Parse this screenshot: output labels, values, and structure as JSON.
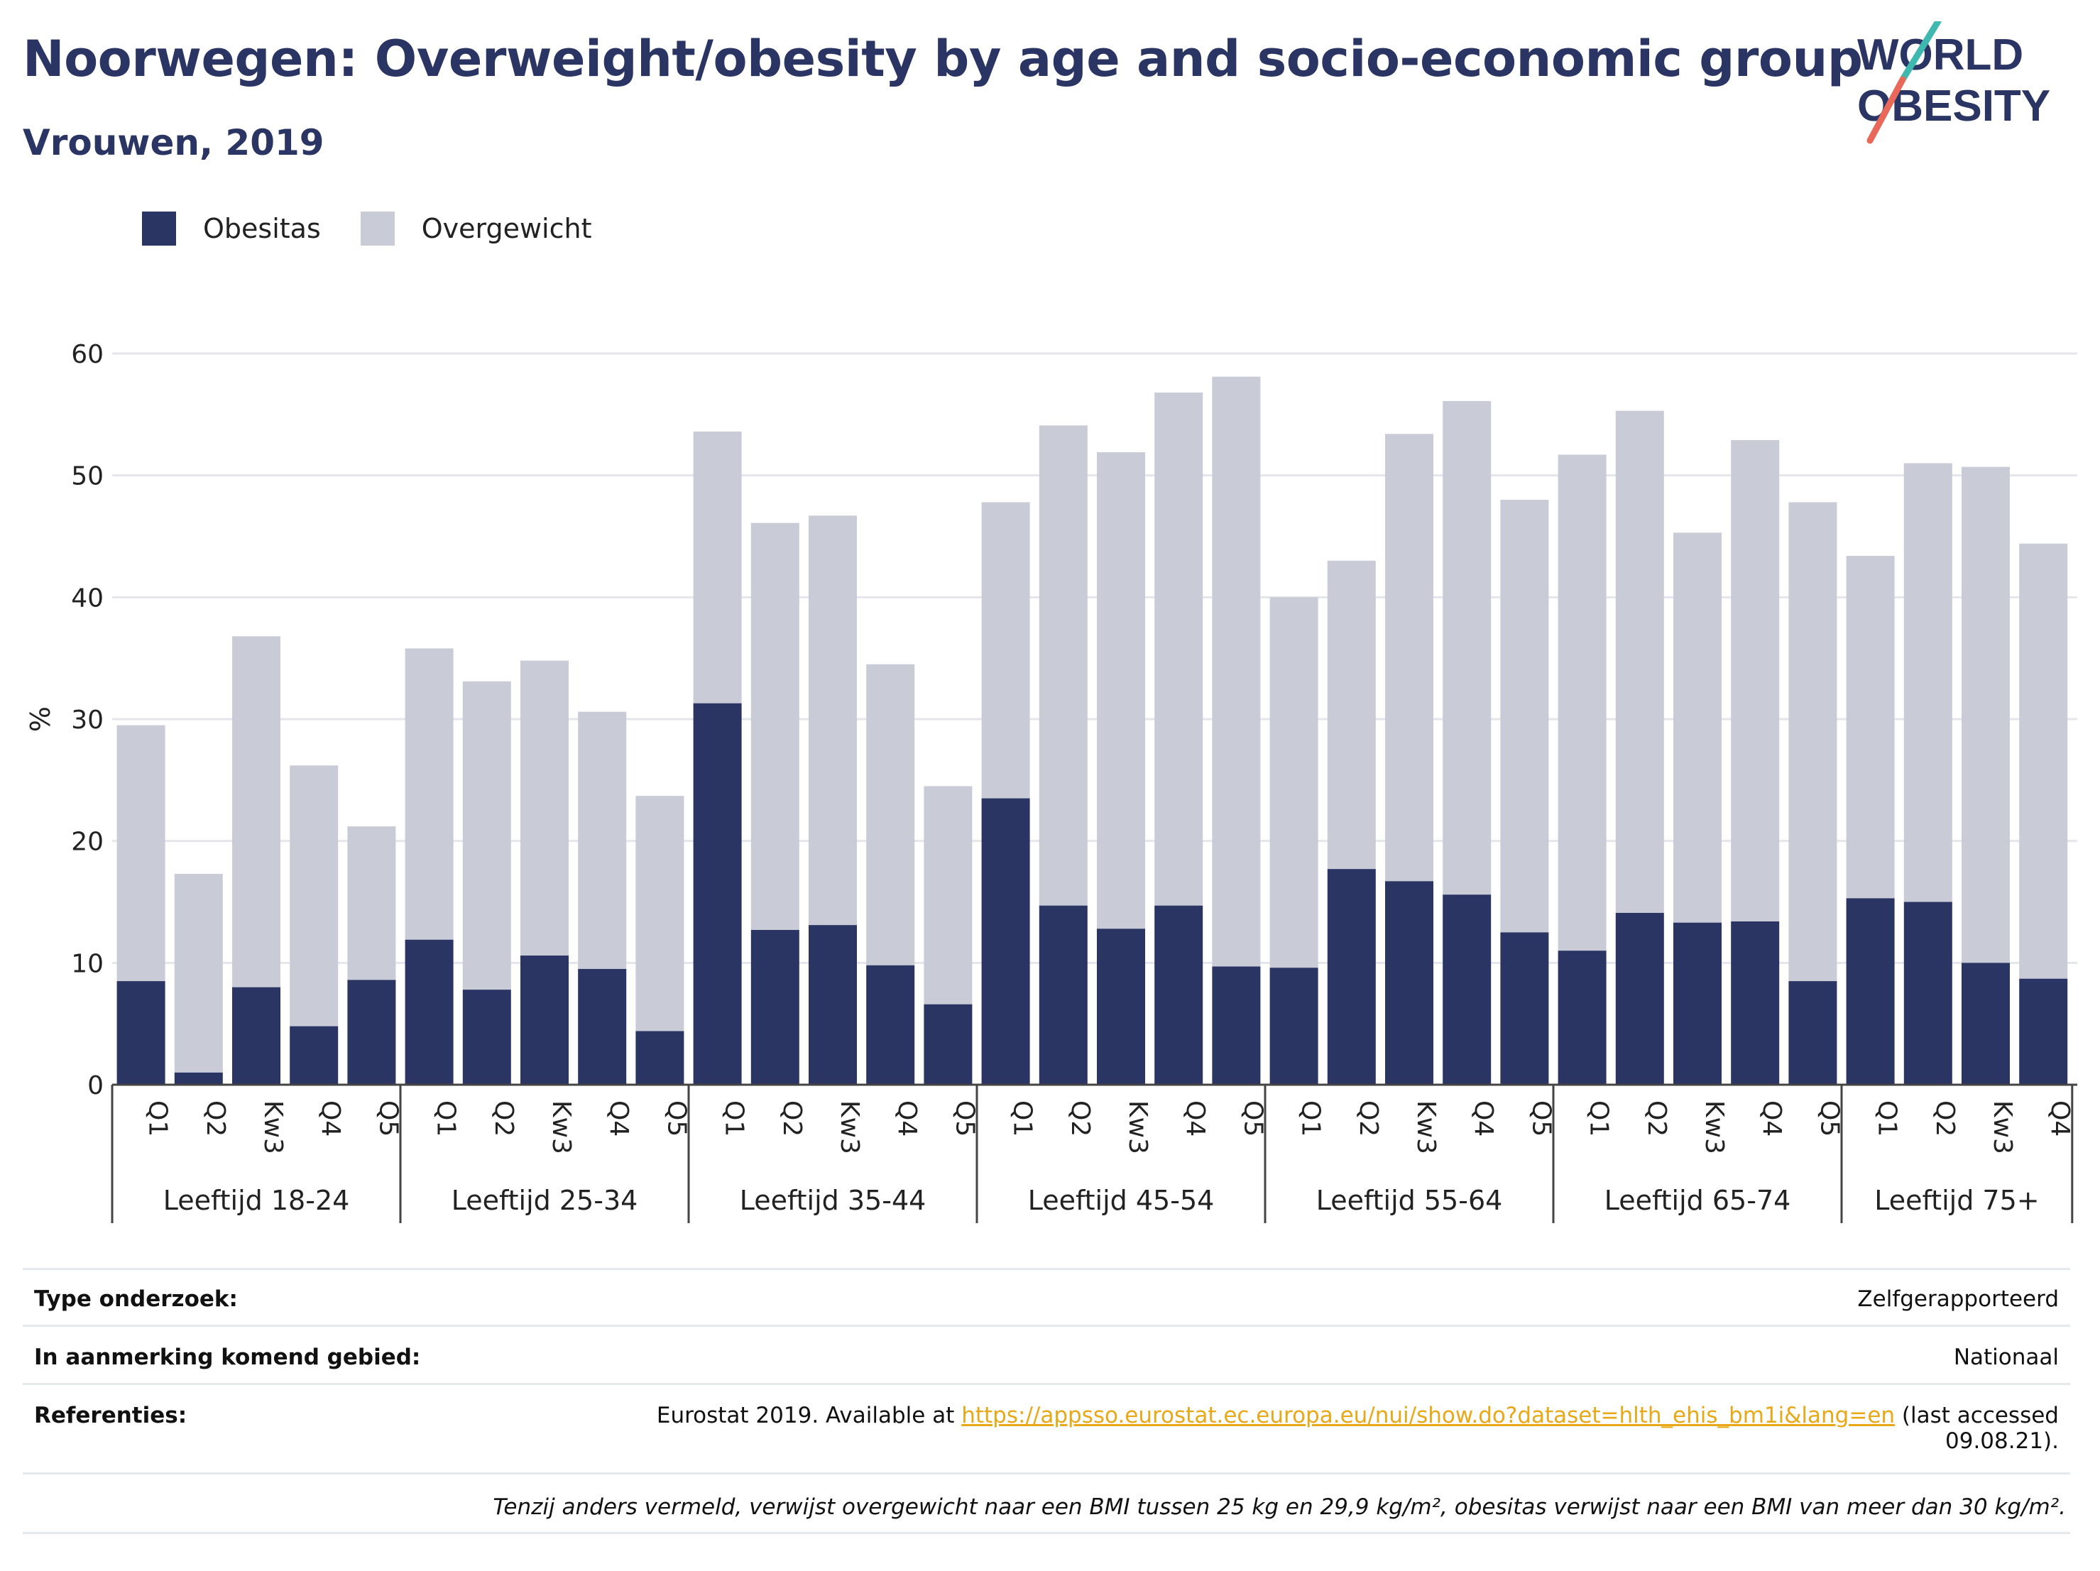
{
  "title": "Noorwegen: Overweight/obesity by age and socio-economic group",
  "subtitle": "Vrouwen, 2019",
  "logo": {
    "line1": "WORLD",
    "line2": "OBESITY"
  },
  "colors": {
    "obesitas": "#2b3564",
    "overgewicht": "#c9cbd7",
    "accent_teal": "#3fb8b0",
    "accent_red": "#e8695a",
    "link": "#e8a817"
  },
  "chart_data": {
    "type": "bar",
    "stacked": true,
    "ylabel": "%",
    "ylim": [
      0,
      60
    ],
    "yticks": [
      0,
      10,
      20,
      30,
      40,
      50,
      60
    ],
    "grid": true,
    "legend_position": "top-left",
    "groups": [
      {
        "label": "Leeftijd 18-24",
        "categories": [
          "Q1",
          "Q2",
          "Kw3",
          "Q4",
          "Q5"
        ]
      },
      {
        "label": "Leeftijd 25-34",
        "categories": [
          "Q1",
          "Q2",
          "Kw3",
          "Q4",
          "Q5"
        ]
      },
      {
        "label": "Leeftijd 35-44",
        "categories": [
          "Q1",
          "Q2",
          "Kw3",
          "Q4",
          "Q5"
        ]
      },
      {
        "label": "Leeftijd 45-54",
        "categories": [
          "Q1",
          "Q2",
          "Kw3",
          "Q4",
          "Q5"
        ]
      },
      {
        "label": "Leeftijd 55-64",
        "categories": [
          "Q1",
          "Q2",
          "Kw3",
          "Q4",
          "Q5"
        ]
      },
      {
        "label": "Leeftijd 65-74",
        "categories": [
          "Q1",
          "Q2",
          "Kw3",
          "Q4",
          "Q5"
        ]
      },
      {
        "label": "Leeftijd 75+",
        "categories": [
          "Q1",
          "Q2",
          "Kw3",
          "Q4"
        ]
      }
    ],
    "series": [
      {
        "name": "Obesitas",
        "values": [
          8.5,
          1.0,
          8.0,
          4.8,
          8.6,
          11.9,
          7.8,
          10.6,
          9.5,
          4.4,
          31.3,
          12.7,
          13.1,
          9.8,
          6.6,
          23.5,
          14.7,
          12.8,
          14.7,
          9.7,
          9.6,
          17.7,
          16.7,
          15.6,
          12.5,
          11.0,
          14.1,
          13.3,
          13.4,
          8.5,
          15.3,
          15.0,
          10.0,
          8.7
        ]
      },
      {
        "name": "Overgewicht",
        "values": [
          21.0,
          16.3,
          28.8,
          21.4,
          12.6,
          23.9,
          25.3,
          24.2,
          21.1,
          19.3,
          22.3,
          33.4,
          33.6,
          24.7,
          17.9,
          24.3,
          39.4,
          39.1,
          42.1,
          48.4,
          30.4,
          25.3,
          36.7,
          40.5,
          35.5,
          40.7,
          41.2,
          32.0,
          39.5,
          39.3,
          28.1,
          36.0,
          40.7,
          35.7
        ]
      }
    ]
  },
  "meta": {
    "rows": [
      {
        "label": "Type onderzoek:",
        "value": "Zelfgerapporteerd"
      },
      {
        "label": "In aanmerking komend gebied:",
        "value": "Nationaal"
      }
    ],
    "ref_label": "Referenties:",
    "ref_prefix": "Eurostat 2019. Available at ",
    "ref_link": "https://appsso.eurostat.ec.europa.eu/nui/show.do?dataset=hlth_ehis_bm1i&lang=en",
    "ref_suffix": " (last accessed",
    "ref_date": "09.08.21).",
    "note": "Tenzij anders vermeld, verwijst overgewicht naar een BMI tussen 25 kg en 29,9 kg/m², obesitas verwijst naar een BMI van meer dan 30 kg/m²."
  }
}
